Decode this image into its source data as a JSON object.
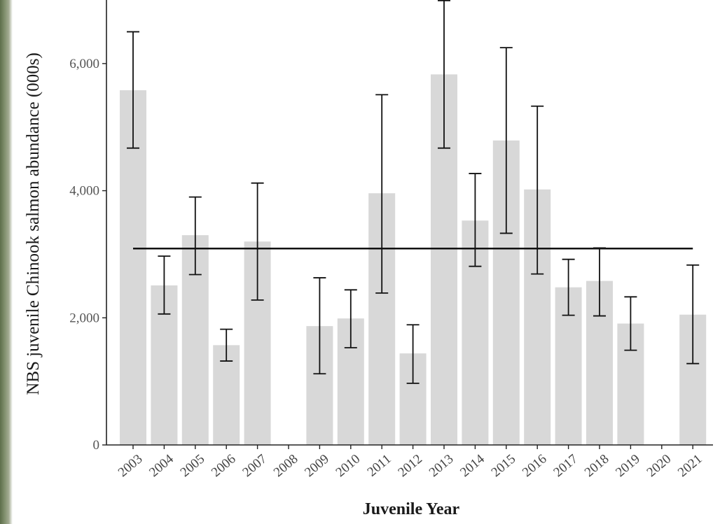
{
  "chart_data": {
    "type": "bar",
    "xlabel": "Juvenile Year",
    "ylabel": "NBS juvenile Chinook salmon abundance (000s)",
    "ylim": [
      0,
      7000
    ],
    "yticks": [
      0,
      2000,
      4000,
      6000
    ],
    "ytick_labels": [
      "0",
      "2,000",
      "4,000",
      "6,000"
    ],
    "categories": [
      "2003",
      "2004",
      "2005",
      "2006",
      "2007",
      "2008",
      "2009",
      "2010",
      "2011",
      "2012",
      "2013",
      "2014",
      "2015",
      "2016",
      "2017",
      "2018",
      "2019",
      "2020",
      "2021"
    ],
    "values": [
      5580,
      2510,
      3300,
      1570,
      3200,
      null,
      1870,
      1990,
      3960,
      1440,
      5830,
      3530,
      4790,
      4020,
      2480,
      2580,
      1910,
      null,
      2050
    ],
    "error_low": [
      4670,
      2060,
      2680,
      1320,
      2280,
      null,
      1120,
      1530,
      2390,
      970,
      4670,
      2810,
      3330,
      2690,
      2040,
      2030,
      1490,
      null,
      1280
    ],
    "error_high": [
      6500,
      2970,
      3900,
      1820,
      4120,
      null,
      2630,
      2440,
      5510,
      1890,
      6990,
      4270,
      6250,
      5330,
      2920,
      3100,
      2330,
      null,
      2830
    ],
    "mean_line": 3090,
    "colors": {
      "bar": "#d8d8d8",
      "error": "#111111",
      "mean_line": "#111111",
      "axis": "#222222"
    },
    "grid": false,
    "legend": "none"
  }
}
